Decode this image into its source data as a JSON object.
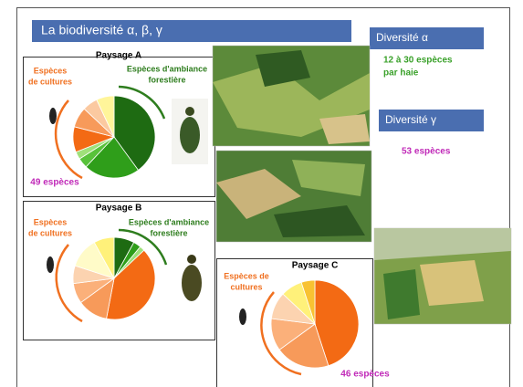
{
  "title": "La biodiversité α, β, γ",
  "alpha": {
    "label": "Diversité α",
    "value": [
      "12 à 30 espèces",
      "par haie"
    ]
  },
  "gamma": {
    "label": "Diversité γ",
    "value": "53 espèces"
  },
  "landscapes": [
    {
      "name": "Paysage A",
      "crop_label": [
        "Espèces",
        "de cultures"
      ],
      "forest_label": [
        "Espèces d'ambiance",
        "forestière"
      ],
      "count": "49 espèces",
      "slices": {
        "values": [
          40,
          22,
          4,
          3,
          10,
          8,
          6,
          7
        ],
        "colors": [
          "#1e6b12",
          "#2f9e1a",
          "#58c23a",
          "#9fe07a",
          "#f36a14",
          "#f79a5a",
          "#fbc9a0",
          "#fff59a"
        ]
      }
    },
    {
      "name": "Paysage B",
      "crop_label": [
        "Espèces",
        "de cultures"
      ],
      "forest_label": [
        "Espèces d'ambiance",
        "forestière"
      ],
      "slices": {
        "values": [
          8,
          3,
          2,
          40,
          12,
          8,
          7,
          12,
          8
        ],
        "colors": [
          "#1e6b12",
          "#2f9e1a",
          "#9fe07a",
          "#f36a14",
          "#f79a5a",
          "#fbb07a",
          "#fcd3b0",
          "#fffbc8",
          "#fff17a"
        ]
      }
    },
    {
      "name": "Paysage C",
      "crop_label": [
        "Espèces de",
        "cultures"
      ],
      "count": "46 espèces",
      "slices": {
        "values": [
          45,
          20,
          12,
          10,
          8,
          5
        ],
        "colors": [
          "#f36a14",
          "#f79a5a",
          "#fbb07a",
          "#fcd3b0",
          "#fff17a",
          "#f8c232"
        ]
      }
    }
  ]
}
